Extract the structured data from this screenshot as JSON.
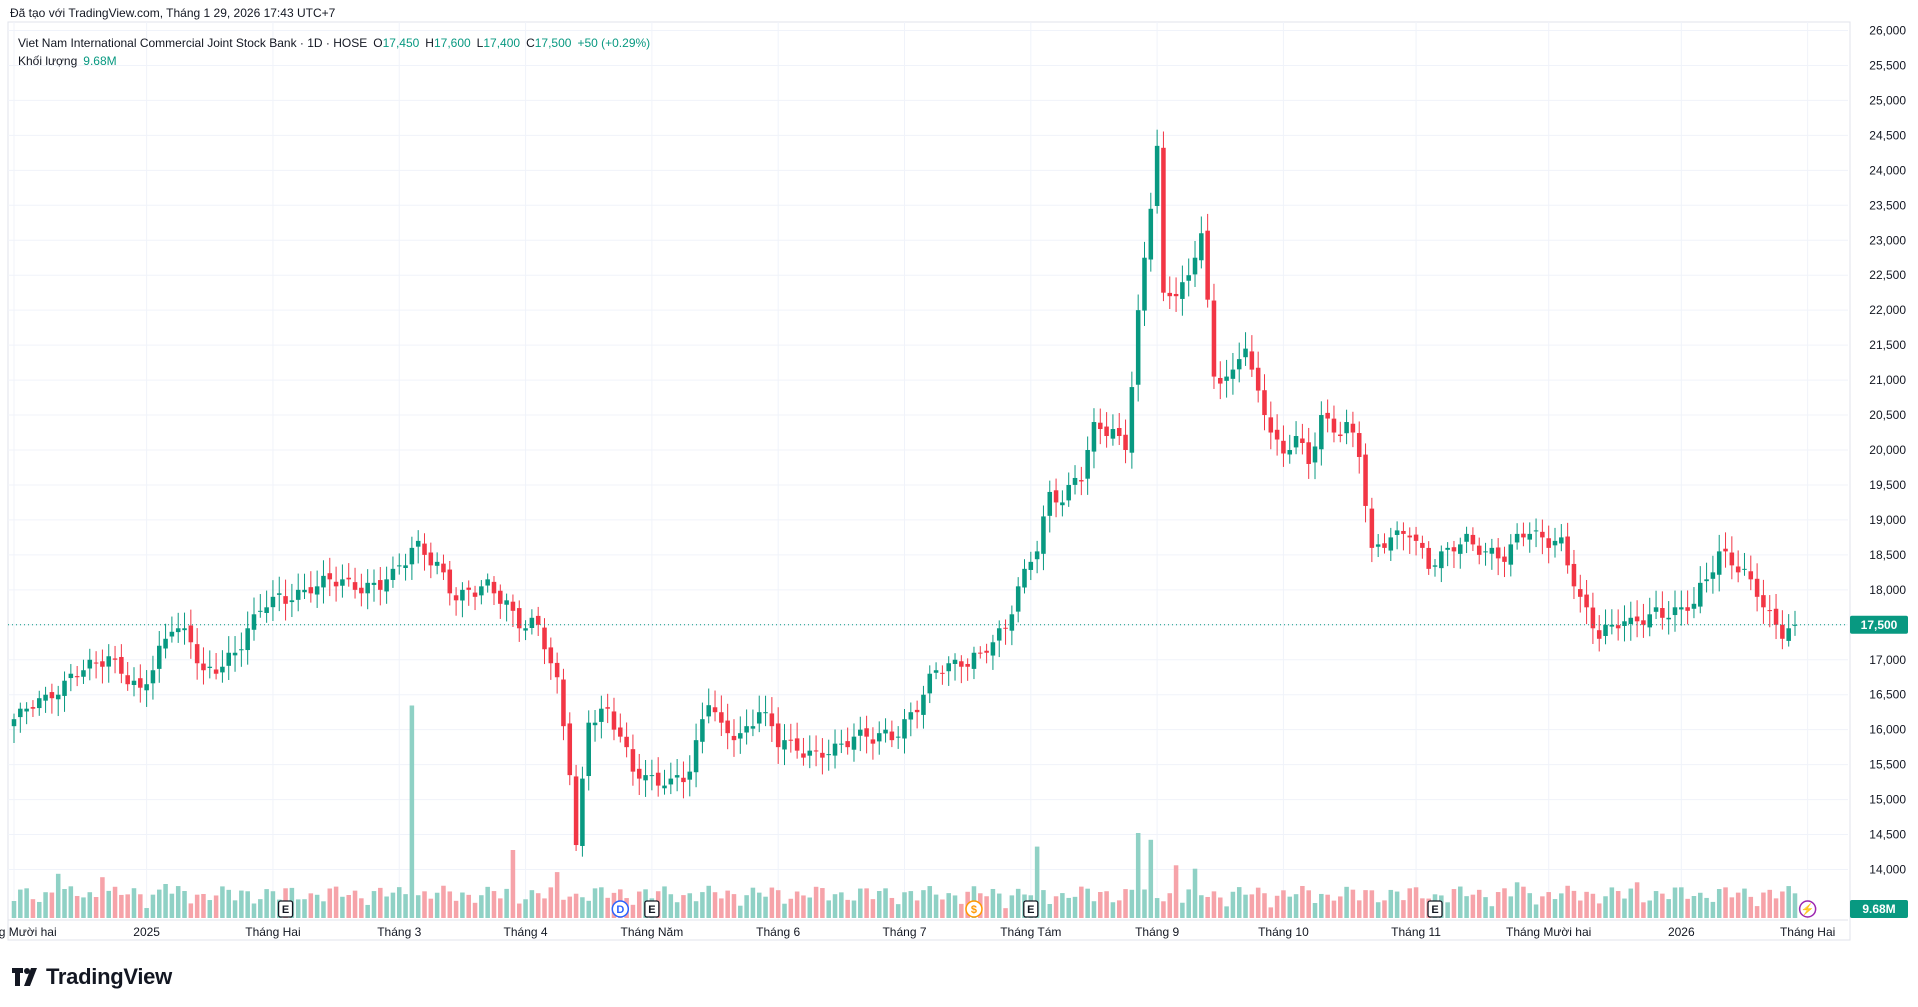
{
  "caption": "Đã tạo với TradingView.com, Tháng 1 29, 2026 17:43 UTC+7",
  "brand": "TradingView",
  "legend": {
    "title": "Viet Nam International Commercial Joint Stock Bank · 1D · HOSE",
    "o_key": "O",
    "o_val": "17,450",
    "h_key": "H",
    "h_val": "17,600",
    "l_key": "L",
    "l_val": "17,400",
    "c_key": "C",
    "c_val": "17,500",
    "change": "+50 (+0.29%)",
    "volume_label": "Khối lượng",
    "volume_val": "9.68M"
  },
  "colors": {
    "up": "#089981",
    "down": "#f23645",
    "vol_up": "#8fd1c5",
    "vol_down": "#f6a3a9",
    "grid": "#f0f3fa",
    "text": "#131722"
  },
  "chart_data": {
    "type": "candlestick",
    "title": "Viet Nam International Commercial Joint Stock Bank · 1D · HOSE",
    "ylim": [
      13500,
      26100
    ],
    "y_ticks": [
      "14,000",
      "14,500",
      "15,000",
      "15,500",
      "16,000",
      "16,500",
      "17,000",
      "17,500",
      "18,000",
      "18,500",
      "19,000",
      "19,500",
      "20,000",
      "20,500",
      "21,000",
      "21,500",
      "22,000",
      "22,500",
      "23,000",
      "23,500",
      "24,000",
      "24,500",
      "25,000",
      "25,500",
      "26,000"
    ],
    "x_ticks": [
      {
        "label": "Tháng Mười hai",
        "index": 0
      },
      {
        "label": "2025",
        "index": 21
      },
      {
        "label": "Tháng Hai",
        "index": 41
      },
      {
        "label": "Tháng 3",
        "index": 61
      },
      {
        "label": "Tháng 4",
        "index": 81
      },
      {
        "label": "Tháng Năm",
        "index": 101
      },
      {
        "label": "Tháng 6",
        "index": 121
      },
      {
        "label": "Tháng 7",
        "index": 141
      },
      {
        "label": "Tháng Tám",
        "index": 161
      },
      {
        "label": "Tháng 9",
        "index": 181
      },
      {
        "label": "Tháng 10",
        "index": 201
      },
      {
        "label": "Tháng 11",
        "index": 222
      },
      {
        "label": "Tháng Mười hai",
        "index": 243
      },
      {
        "label": "2026",
        "index": 264
      },
      {
        "label": "Tháng Hai",
        "index": 284
      }
    ],
    "last_price": 17500,
    "last_price_label": "17,500",
    "volume_last_label": "9.68M",
    "markers": [
      {
        "label": "E",
        "index": 43,
        "color": "#131722"
      },
      {
        "label": "D",
        "index": 96,
        "color": "#2962ff"
      },
      {
        "label": "E",
        "index": 101,
        "color": "#131722"
      },
      {
        "label": "$",
        "index": 152,
        "color": "#ff9800"
      },
      {
        "label": "E",
        "index": 161,
        "color": "#131722"
      },
      {
        "label": "E",
        "index": 225,
        "color": "#131722"
      },
      {
        "label": "⚡",
        "index": 284,
        "color": "#9c27b0"
      }
    ],
    "anchors": [
      [
        0,
        16150
      ],
      [
        5,
        16400
      ],
      [
        10,
        16900
      ],
      [
        15,
        16950
      ],
      [
        20,
        16600
      ],
      [
        25,
        17450
      ],
      [
        28,
        17250
      ],
      [
        30,
        16800
      ],
      [
        35,
        17100
      ],
      [
        40,
        17800
      ],
      [
        45,
        18000
      ],
      [
        50,
        18100
      ],
      [
        55,
        18050
      ],
      [
        60,
        18200
      ],
      [
        64,
        18600
      ],
      [
        67,
        18400
      ],
      [
        70,
        17900
      ],
      [
        75,
        18000
      ],
      [
        78,
        17800
      ],
      [
        80,
        17600
      ],
      [
        83,
        17500
      ],
      [
        86,
        16600
      ],
      [
        88,
        15400
      ],
      [
        89,
        14300
      ],
      [
        91,
        16200
      ],
      [
        94,
        16300
      ],
      [
        96,
        15900
      ],
      [
        98,
        15350
      ],
      [
        101,
        15300
      ],
      [
        104,
        15300
      ],
      [
        107,
        15400
      ],
      [
        110,
        16400
      ],
      [
        112,
        16000
      ],
      [
        115,
        15950
      ],
      [
        118,
        16300
      ],
      [
        121,
        15800
      ],
      [
        124,
        15700
      ],
      [
        128,
        15700
      ],
      [
        132,
        15800
      ],
      [
        136,
        15900
      ],
      [
        140,
        16000
      ],
      [
        143,
        16300
      ],
      [
        146,
        16800
      ],
      [
        150,
        17000
      ],
      [
        153,
        17100
      ],
      [
        157,
        17400
      ],
      [
        159,
        18000
      ],
      [
        162,
        18700
      ],
      [
        164,
        19400
      ],
      [
        166,
        19300
      ],
      [
        169,
        19600
      ],
      [
        171,
        20300
      ],
      [
        174,
        20300
      ],
      [
        176,
        20100
      ],
      [
        178,
        21900
      ],
      [
        180,
        23500
      ],
      [
        181,
        24300
      ],
      [
        182,
        22100
      ],
      [
        184,
        22300
      ],
      [
        186,
        22500
      ],
      [
        188,
        23200
      ],
      [
        190,
        21000
      ],
      [
        193,
        21000
      ],
      [
        195,
        21500
      ],
      [
        197,
        20800
      ],
      [
        199,
        20400
      ],
      [
        201,
        19900
      ],
      [
        203,
        20200
      ],
      [
        205,
        19700
      ],
      [
        207,
        20500
      ],
      [
        209,
        20300
      ],
      [
        211,
        20400
      ],
      [
        213,
        20000
      ],
      [
        215,
        18500
      ],
      [
        218,
        18700
      ],
      [
        221,
        18900
      ],
      [
        224,
        18400
      ],
      [
        227,
        18500
      ],
      [
        230,
        18700
      ],
      [
        233,
        18600
      ],
      [
        236,
        18500
      ],
      [
        239,
        18800
      ],
      [
        242,
        18700
      ],
      [
        245,
        18700
      ],
      [
        248,
        17900
      ],
      [
        251,
        17300
      ],
      [
        254,
        17500
      ],
      [
        257,
        17600
      ],
      [
        260,
        17700
      ],
      [
        263,
        17600
      ],
      [
        266,
        17800
      ],
      [
        268,
        18200
      ],
      [
        270,
        18600
      ],
      [
        272,
        18400
      ],
      [
        274,
        18200
      ],
      [
        276,
        17900
      ],
      [
        278,
        17600
      ],
      [
        280,
        17450
      ],
      [
        282,
        17500
      ]
    ],
    "volume_peaks": [
      {
        "index": 7,
        "value": 2.6
      },
      {
        "index": 14,
        "value": 2.4
      },
      {
        "index": 24,
        "value": 2.0
      },
      {
        "index": 63,
        "value": 12.5
      },
      {
        "index": 79,
        "value": 4.0
      },
      {
        "index": 86,
        "value": 2.7
      },
      {
        "index": 162,
        "value": 4.2
      },
      {
        "index": 178,
        "value": 5.0
      },
      {
        "index": 180,
        "value": 4.6
      },
      {
        "index": 184,
        "value": 3.1
      },
      {
        "index": 187,
        "value": 2.9
      },
      {
        "index": 238,
        "value": 2.1
      },
      {
        "index": 257,
        "value": 2.1
      }
    ],
    "n_bars": 283
  }
}
